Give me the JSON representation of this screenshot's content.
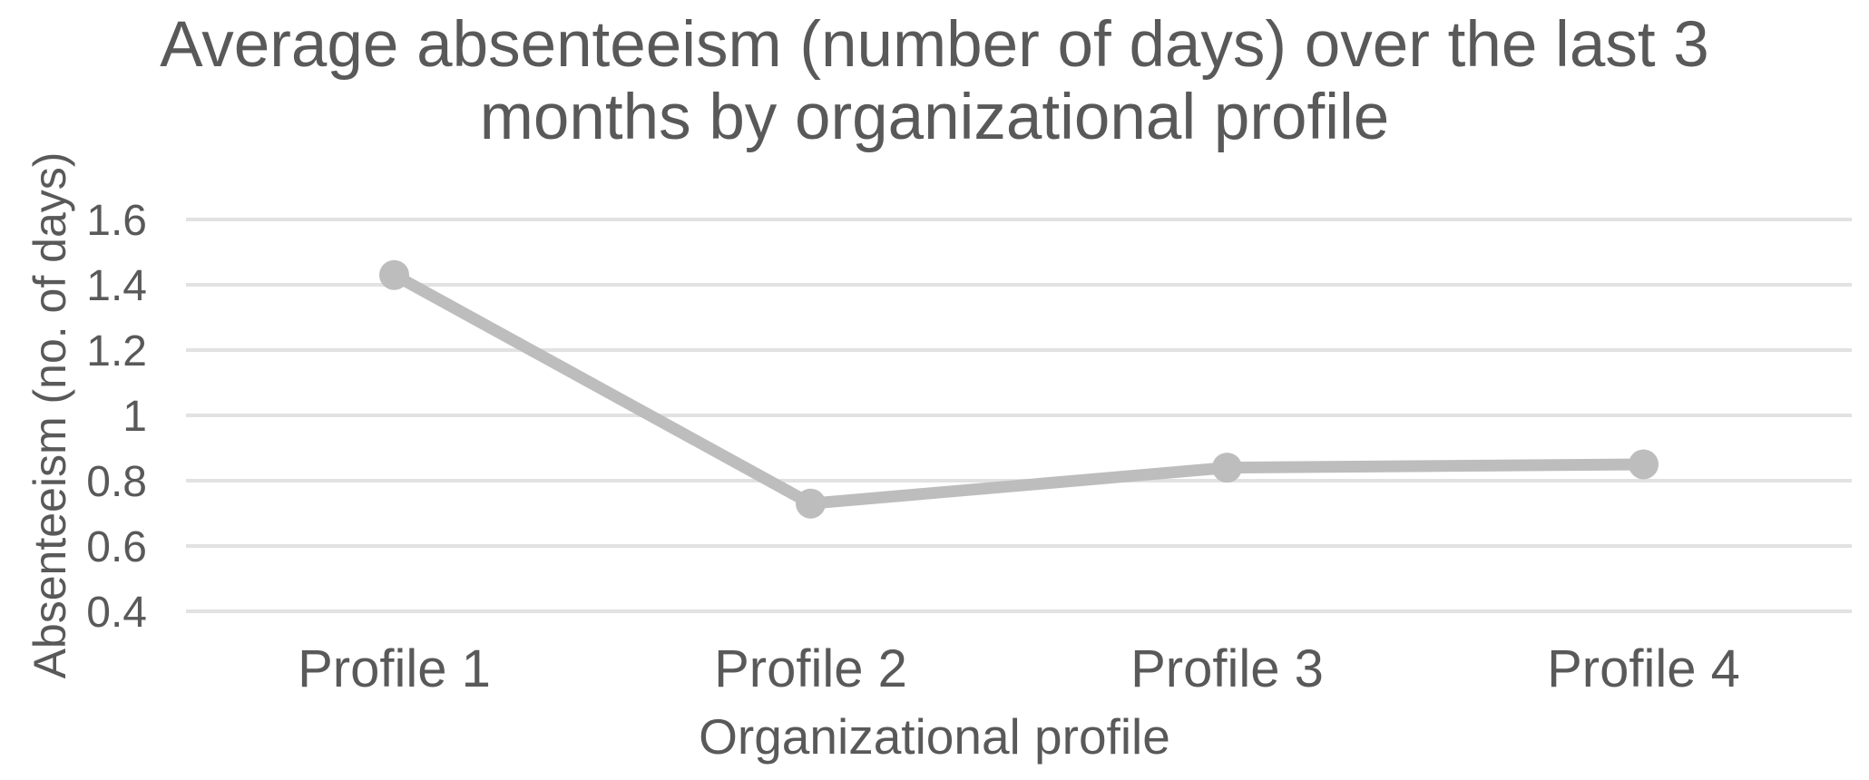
{
  "chart_data": {
    "type": "line",
    "title": "Average absenteeism (number of days) over the last 3 months by organizational profile",
    "xlabel": "Organizational profile",
    "ylabel": "Absenteeism (no. of days)",
    "categories": [
      "Profile 1",
      "Profile 2",
      "Profile 3",
      "Profile 4"
    ],
    "series": [
      {
        "name": "Average absenteeism",
        "values": [
          1.43,
          0.73,
          0.84,
          0.85
        ]
      }
    ],
    "yticks": [
      1.6,
      1.4,
      1.2,
      1.0,
      0.8,
      0.6,
      0.4
    ],
    "ytick_labels": [
      "1.6",
      "1.4",
      "1.2",
      "1",
      "0.8",
      "0.6",
      "0.4"
    ],
    "ylim": [
      0.4,
      1.6
    ],
    "grid": "horizontal",
    "legend": "none",
    "colors": {
      "line": "#BDBDBD",
      "marker": "#BDBDBD",
      "gridline": "#E2E2E2",
      "text": "#595959",
      "title": "#595959"
    }
  }
}
